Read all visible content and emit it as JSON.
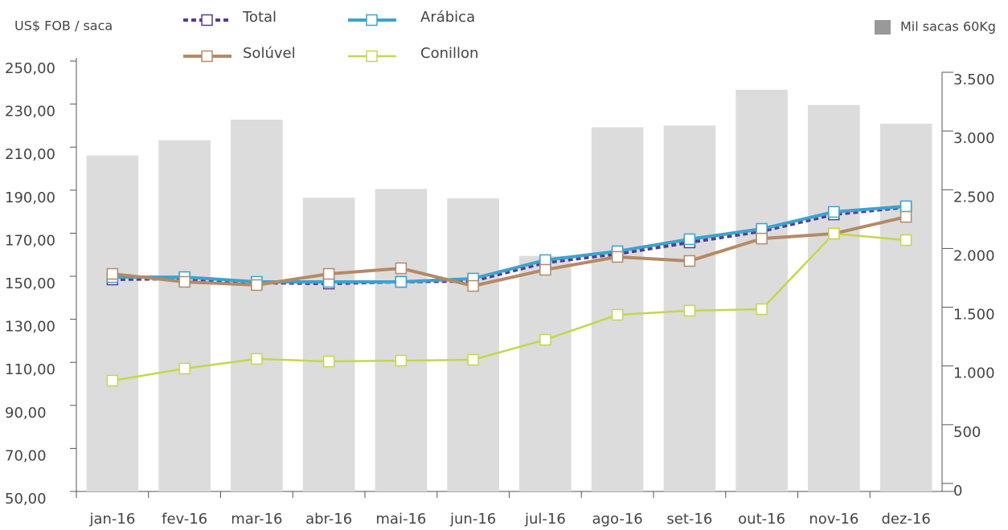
{
  "chart_data": {
    "type": "bar",
    "y_label": "US$ FOB / saca",
    "categories": [
      "jan-16",
      "fev-16",
      "mar-16",
      "abr-16",
      "mai-16",
      "jun-16",
      "jul-16",
      "ago-16",
      "set-16",
      "out-16",
      "nov-16",
      "dez-16"
    ],
    "series": [
      {
        "name": "Mil sacas 60Kg",
        "type": "bar",
        "axis": "y2",
        "color": "#dcdcdc",
        "values": [
          2860,
          2990,
          3165,
          2500,
          2575,
          2495,
          2005,
          3100,
          3115,
          3420,
          3290,
          3130
        ]
      },
      {
        "name": "Total",
        "type": "line",
        "color": "#5b3a8e",
        "dashed": true,
        "values": [
          148.5,
          148.9,
          147,
          146.6,
          147.4,
          147.8,
          156.3,
          160.4,
          165.7,
          170.9,
          178.7,
          182.1
        ]
      },
      {
        "name": "Arábica",
        "type": "line",
        "color": "#3ba3d0",
        "values": [
          149.6,
          149.6,
          147.4,
          147.4,
          147.4,
          148.9,
          157.5,
          161.6,
          167.2,
          172,
          179.9,
          182.5
        ]
      },
      {
        "name": "Solúvel",
        "type": "line",
        "color": "#b48a66",
        "values": [
          151.1,
          147.4,
          145.9,
          151.1,
          153.7,
          145.5,
          153,
          159,
          157.1,
          167.5,
          169.8,
          177.6
        ]
      },
      {
        "name": "Conillon",
        "type": "line",
        "color": "#c6d64a",
        "values": [
          101.5,
          107.1,
          111.6,
          110.4,
          110.8,
          111.2,
          120.5,
          132.1,
          134,
          134.7,
          169.8,
          166.8
        ]
      }
    ],
    "ylim": [
      50,
      250
    ],
    "yticks": [
      {
        "value": 50,
        "label": "50,00"
      },
      {
        "value": 70,
        "label": "70,00"
      },
      {
        "value": 90,
        "label": "90,00"
      },
      {
        "value": 110,
        "label": "110,00"
      },
      {
        "value": 130,
        "label": "130,00"
      },
      {
        "value": 150,
        "label": "150,00"
      },
      {
        "value": 170,
        "label": "170,00"
      },
      {
        "value": 190,
        "label": "190,00"
      },
      {
        "value": 210,
        "label": "210,00"
      },
      {
        "value": 230,
        "label": "230,00"
      },
      {
        "value": 250,
        "label": "250,00"
      }
    ],
    "y2lim": [
      0,
      3500
    ],
    "y2ticks": [
      0,
      500,
      {
        "value": 1000,
        "label": "1.000"
      },
      {
        "value": 1500,
        "label": "1.500"
      },
      {
        "value": 2000,
        "label": "2.000"
      },
      {
        "value": 2500,
        "label": "2.500"
      },
      {
        "value": 3000,
        "label": "3.000"
      },
      {
        "value": 3500,
        "label": "3.500"
      }
    ]
  }
}
